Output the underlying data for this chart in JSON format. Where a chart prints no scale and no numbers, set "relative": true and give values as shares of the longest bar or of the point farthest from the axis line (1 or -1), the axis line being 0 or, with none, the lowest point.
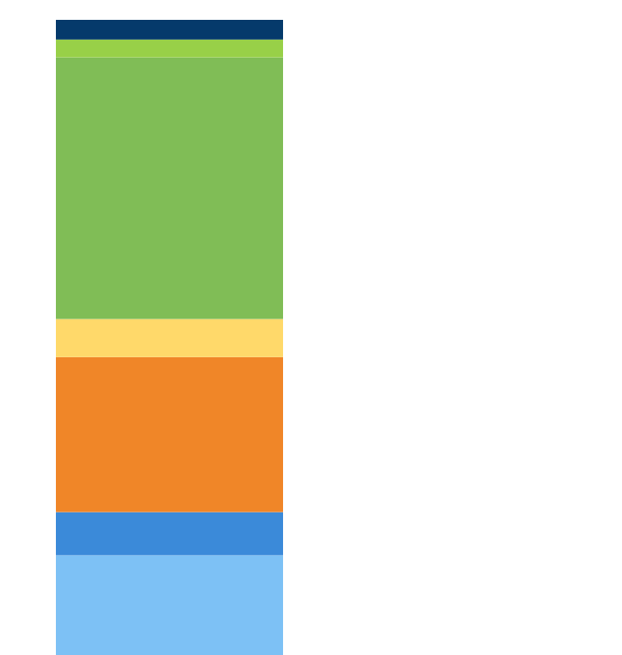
{
  "chart_data": {
    "type": "bar",
    "stacked": true,
    "relative": true,
    "categories": [
      null
    ],
    "series": [
      {
        "color": "#7dc1f5",
        "values": [
          0.157
        ]
      },
      {
        "color": "#3b8ad9",
        "values": [
          0.068
        ]
      },
      {
        "color": "#f08628",
        "values": [
          0.244
        ]
      },
      {
        "color": "#ffd96a",
        "values": [
          0.06
        ]
      },
      {
        "color": "#80bd56",
        "values": [
          0.412
        ]
      },
      {
        "color": "#98d048",
        "values": [
          0.028
        ]
      },
      {
        "color": "#053a6b",
        "values": [
          0.031
        ]
      }
    ]
  }
}
